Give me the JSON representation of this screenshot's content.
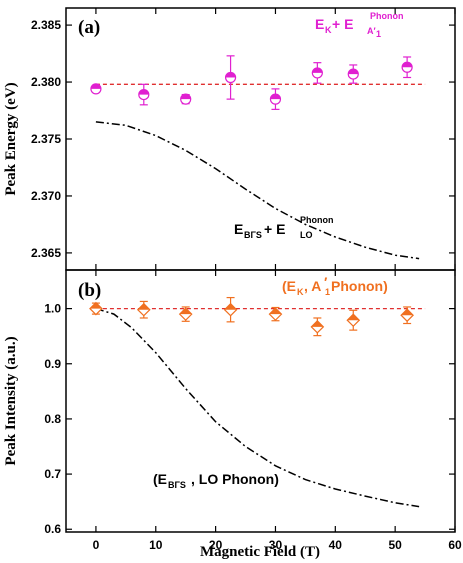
{
  "chart_data": [
    {
      "type": "scatter",
      "panel_label": "(a)",
      "ylabel": "Peak Energy (eV)",
      "xlim": [
        -5,
        60
      ],
      "ylim": [
        2.3635,
        2.3865
      ],
      "yticks": [
        "2.365",
        "2.370",
        "2.375",
        "2.380",
        "2.385"
      ],
      "yticks_values": [
        2.365,
        2.37,
        2.375,
        2.38,
        2.385
      ],
      "grid": false,
      "series": [
        {
          "name_main": "E",
          "name_sub1": "K",
          "name_mid": " + E",
          "name_sup": "Phonon",
          "name_sub2": "A′",
          "name_sub2_index": "1",
          "color": "#e020d0",
          "x": [
            0,
            8,
            15,
            22.5,
            30,
            37,
            43,
            52
          ],
          "y": [
            2.3794,
            2.3789,
            2.3785,
            2.3804,
            2.3785,
            2.3808,
            2.3807,
            2.3813
          ],
          "err": [
            0.0003,
            0.0009,
            0.0004,
            0.0019,
            0.0009,
            0.0009,
            0.0008,
            0.0009
          ]
        }
      ],
      "reference_line": {
        "y": 2.3798,
        "color": "#e03030",
        "style": "dashed",
        "x_range": [
          0,
          55
        ]
      },
      "model_curve": {
        "name_main": "E",
        "name_sub": "BΓS",
        "name_mid": " + E",
        "name_sup": "Phonon",
        "name_sub2": "LO",
        "color": "#000000",
        "style": "dash-dot",
        "x": [
          0,
          5,
          10,
          15,
          20,
          25,
          30,
          35,
          40,
          45,
          50,
          54
        ],
        "y": [
          2.3765,
          2.3762,
          2.3753,
          2.374,
          2.3724,
          2.3706,
          2.3689,
          2.3675,
          2.3664,
          2.3655,
          2.3648,
          2.3645
        ]
      }
    },
    {
      "type": "scatter",
      "panel_label": "(b)",
      "ylabel": "Peak Intensity (a.u.)",
      "xlabel": "Magnetic Field (T)",
      "xlim": [
        -5,
        60
      ],
      "ylim": [
        0.595,
        1.07
      ],
      "xticks": [
        "0",
        "10",
        "20",
        "30",
        "40",
        "50",
        "60"
      ],
      "xticks_values": [
        0,
        10,
        20,
        30,
        40,
        50,
        60
      ],
      "yticks": [
        "0.6",
        "0.7",
        "0.8",
        "0.9",
        "1.0"
      ],
      "yticks_values": [
        0.6,
        0.7,
        0.8,
        0.9,
        1.0
      ],
      "grid": false,
      "series": [
        {
          "name_open": "(E",
          "name_sub1": "K",
          "name_mid": ", A",
          "name_sub2": "1",
          "name_prime": "′",
          "name_close": " Phonon)",
          "color": "#f07020",
          "x": [
            0,
            8,
            15,
            22.5,
            30,
            37,
            43,
            52
          ],
          "y": [
            1.0,
            0.998,
            0.99,
            0.998,
            0.99,
            0.967,
            0.979,
            0.988
          ],
          "err": [
            0.01,
            0.015,
            0.013,
            0.022,
            0.012,
            0.016,
            0.018,
            0.015
          ]
        }
      ],
      "reference_line": {
        "y": 1.0,
        "color": "#e03030",
        "style": "dashed",
        "x_range": [
          0,
          55
        ]
      },
      "model_curve": {
        "name_open": "(E",
        "name_sub": "BΓS",
        "name_close": ", LO Phonon)",
        "color": "#000000",
        "style": "dash-dot",
        "x": [
          0,
          3,
          6,
          10,
          15,
          20,
          25,
          30,
          35,
          40,
          45,
          50,
          54
        ],
        "y": [
          1.0,
          0.99,
          0.965,
          0.92,
          0.855,
          0.795,
          0.75,
          0.715,
          0.69,
          0.673,
          0.66,
          0.648,
          0.641
        ]
      }
    }
  ]
}
